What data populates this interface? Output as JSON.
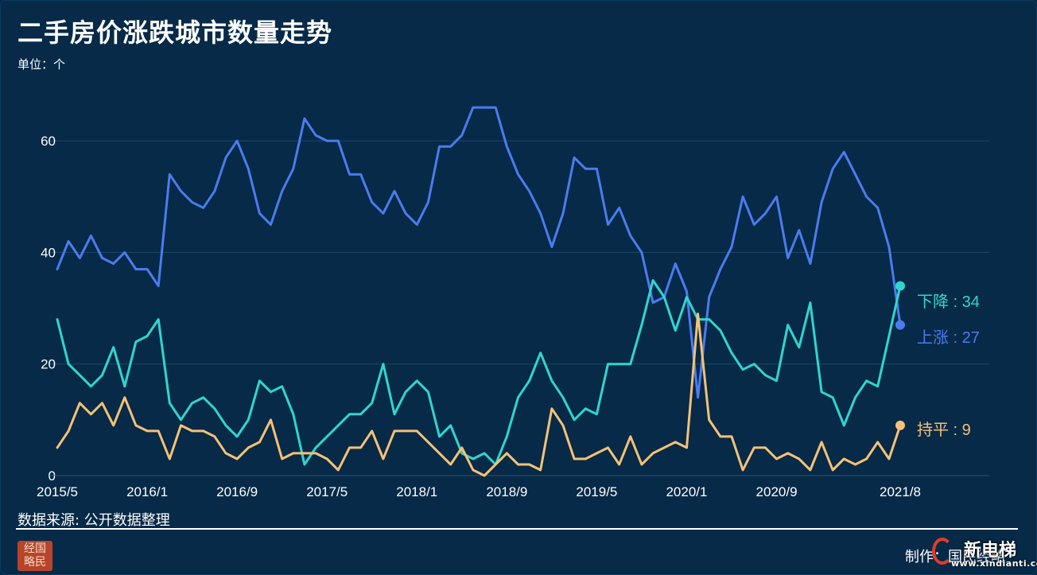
{
  "header": {
    "title": "二手房价涨跌城市数量走势",
    "unit": "单位：个"
  },
  "footer": {
    "source": "数据来源: 公开数据整理",
    "credit": "制作：国民经略",
    "logo_text": "经国略民"
  },
  "watermark": {
    "name": "新电梯",
    "url": "www.xindianti.com"
  },
  "chart_data": {
    "type": "line",
    "title": "二手房价涨跌城市数量走势",
    "ylabel": "单位：个",
    "ylim": [
      0,
      70
    ],
    "yticks": [
      0,
      20,
      40,
      60
    ],
    "grid": true,
    "legend": "end-labels",
    "x_range": [
      "2015/5",
      "2021/8"
    ],
    "xtick_labels": [
      "2015/5",
      "2016/1",
      "2016/9",
      "2017/5",
      "2018/1",
      "2018/9",
      "2019/5",
      "2020/1",
      "2020/9",
      "2021/8"
    ],
    "series": [
      {
        "name": "上涨",
        "end_label": "上涨 : 27",
        "color": "#4a7cf0",
        "values": [
          37,
          42,
          39,
          43,
          39,
          38,
          40,
          37,
          37,
          34,
          54,
          51,
          49,
          48,
          51,
          57,
          60,
          55,
          47,
          45,
          51,
          55,
          64,
          61,
          60,
          60,
          54,
          54,
          49,
          47,
          51,
          47,
          45,
          49,
          59,
          59,
          61,
          66,
          66,
          66,
          59,
          54,
          51,
          47,
          41,
          47,
          57,
          55,
          55,
          45,
          48,
          43,
          40,
          31,
          32,
          38,
          33,
          14,
          32,
          37,
          41,
          50,
          45,
          47,
          50,
          39,
          44,
          38,
          49,
          55,
          58,
          54,
          50,
          48,
          41,
          27
        ]
      },
      {
        "name": "下降",
        "end_label": "下降 : 34",
        "color": "#2fd6d0",
        "values": [
          28,
          20,
          18,
          16,
          18,
          23,
          16,
          24,
          25,
          28,
          13,
          10,
          13,
          14,
          12,
          9,
          7,
          10,
          17,
          15,
          16,
          11,
          2,
          5,
          7,
          9,
          11,
          11,
          13,
          20,
          11,
          15,
          17,
          15,
          7,
          9,
          4,
          3,
          4,
          2,
          7,
          14,
          17,
          22,
          17,
          14,
          10,
          12,
          11,
          20,
          20,
          20,
          27,
          35,
          32,
          26,
          32,
          28,
          28,
          26,
          22,
          19,
          20,
          18,
          17,
          27,
          23,
          31,
          15,
          14,
          9,
          14,
          17,
          16,
          25,
          34
        ]
      },
      {
        "name": "持平",
        "end_label": "持平 : 9",
        "color": "#f6c177",
        "values": [
          5,
          8,
          13,
          11,
          13,
          9,
          14,
          9,
          8,
          8,
          3,
          9,
          8,
          8,
          7,
          4,
          3,
          5,
          6,
          10,
          3,
          4,
          4,
          4,
          3,
          1,
          5,
          5,
          8,
          3,
          8,
          8,
          8,
          6,
          4,
          2,
          5,
          1,
          0,
          2,
          4,
          2,
          2,
          1,
          12,
          9,
          3,
          3,
          4,
          5,
          2,
          7,
          2,
          4,
          5,
          6,
          5,
          29,
          10,
          7,
          7,
          1,
          5,
          5,
          3,
          4,
          3,
          1,
          6,
          1,
          3,
          2,
          3,
          6,
          3,
          9
        ]
      }
    ]
  }
}
